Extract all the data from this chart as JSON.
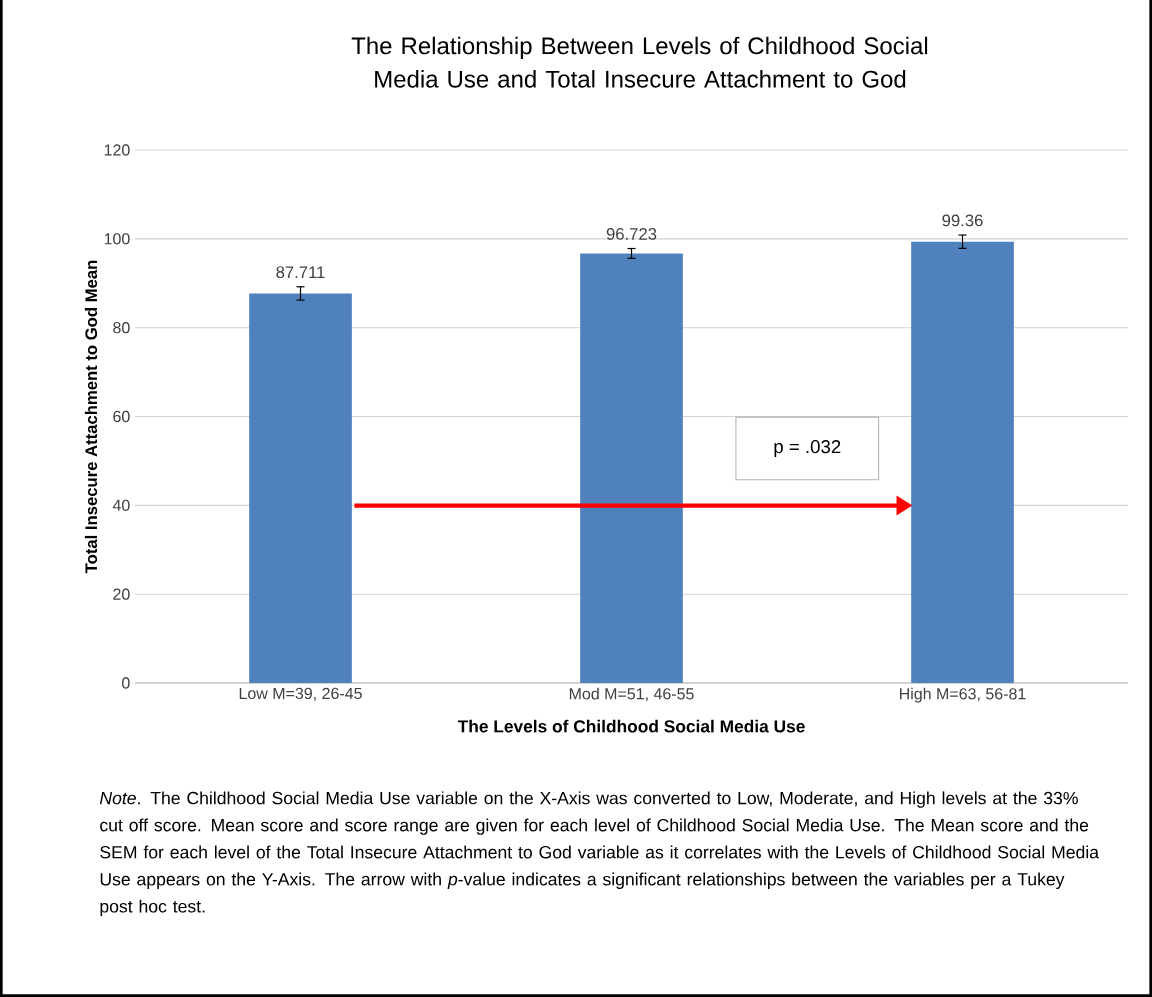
{
  "chart_data": {
    "type": "bar",
    "title": "The Relationship Between Levels of Childhood Social Media Use and Total Insecure Attachment to God",
    "xlabel": "The Levels of Childhood Social Media Use",
    "ylabel": "Total Insecure Attachment to God Mean",
    "categories": [
      "Low M=39, 26-45",
      "Mod M=51, 46-55",
      "High M=63, 56-81"
    ],
    "values": [
      87.711,
      96.723,
      99.36
    ],
    "errors": [
      1.5,
      1.1,
      1.5
    ],
    "color": "#4f81bd",
    "ylim": [
      0,
      120
    ],
    "yticks": [
      0,
      20,
      40,
      60,
      80,
      100,
      120
    ],
    "grid": "y",
    "data_labels": true,
    "annotations": [
      "p = .032",
      "*Note*. The Childhood Social Media Use variable on the X-Axis was converted to Low, Moderate, and High levels at the 33% cut off score. Mean score and score range are given for each level of Childhood Social Media Use. The Mean score and the SEM for each level of the Total Insecure Attachment to God variable as it correlates with the Levels of Childhood Social Media Use appears on the Y-Axis. The arrow with *p*-value indicates a significant relationships between the variables per a Tukey post hoc test."
    ]
  }
}
